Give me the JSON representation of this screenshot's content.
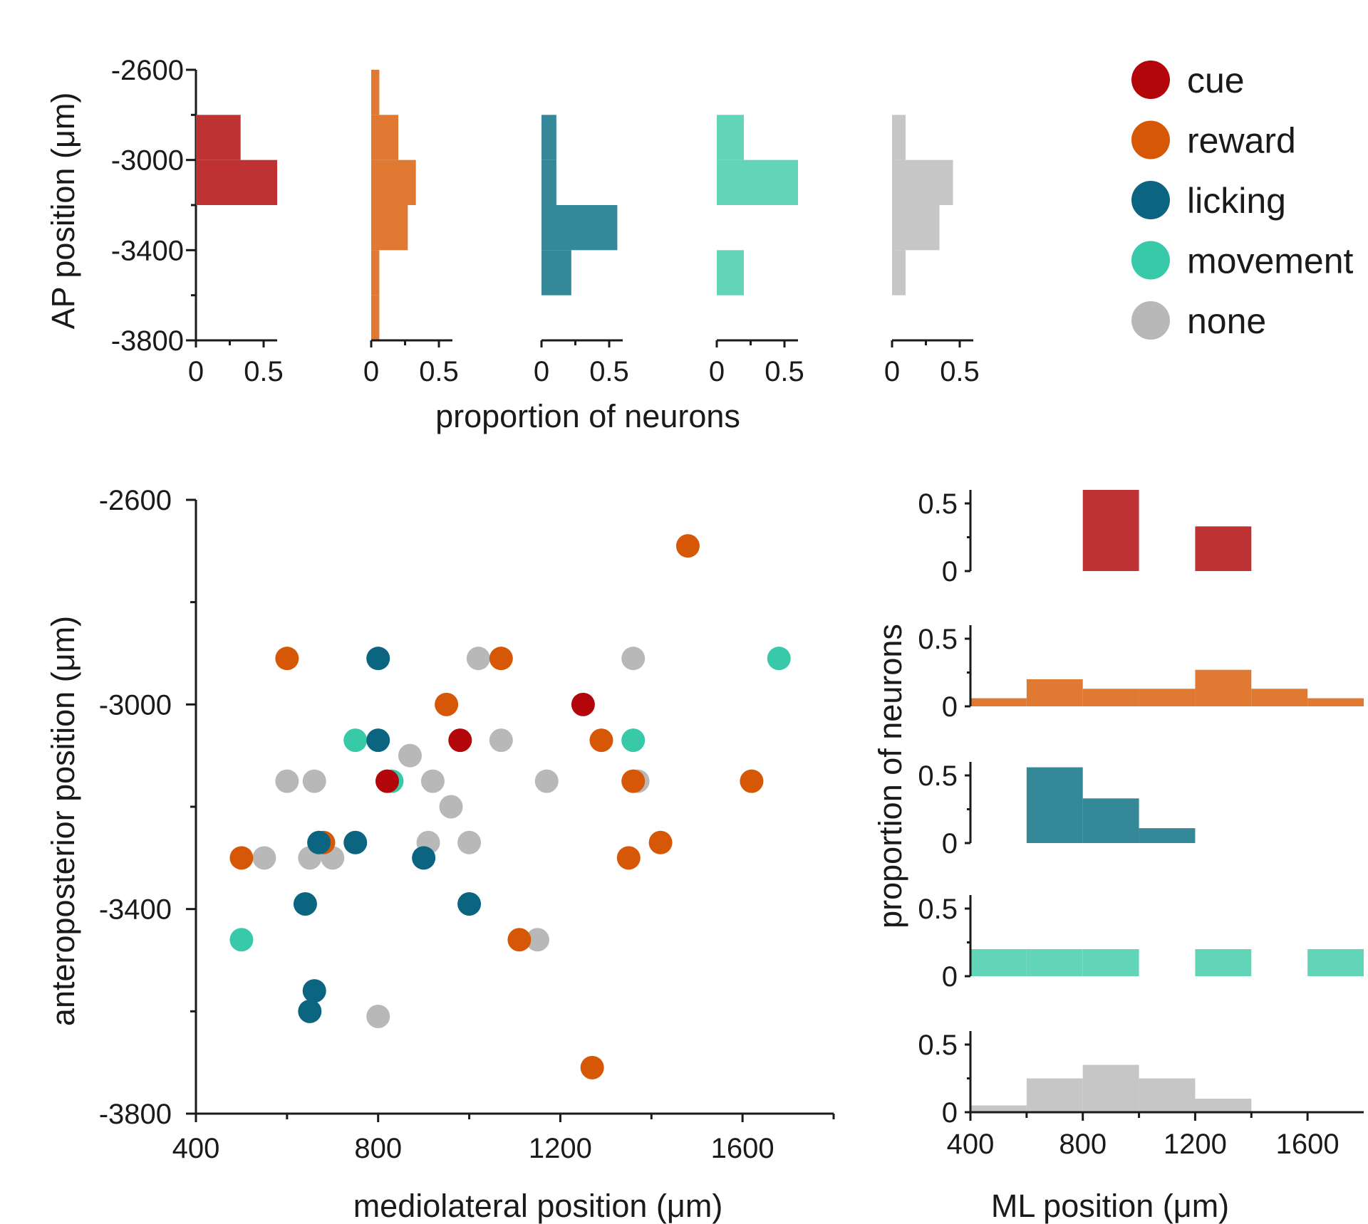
{
  "colors": {
    "cue": "#b3060b",
    "reward": "#d65807",
    "licking": "#0c6580",
    "movement": "#37c9a8",
    "none": "#b8b8b8",
    "hist_cue": "#bf3234",
    "hist_reward": "#e07a33",
    "hist_licking": "#348898",
    "hist_movement": "#62d5b9",
    "hist_none": "#c6c6c6",
    "axis": "#1a1a1a"
  },
  "legend": {
    "items": [
      {
        "key": "cue",
        "label": "cue"
      },
      {
        "key": "reward",
        "label": "reward"
      },
      {
        "key": "licking",
        "label": "licking"
      },
      {
        "key": "movement",
        "label": "movement"
      },
      {
        "key": "none",
        "label": "none"
      }
    ]
  },
  "chart_data": [
    {
      "id": "ap_histograms",
      "type": "bar",
      "orientation": "horizontal",
      "ylabel": "AP position (μm)",
      "xlabel": "proportion of neurons",
      "ylim": [
        -3800,
        -2600
      ],
      "y_ticks": [
        -2600,
        -3000,
        -3400,
        -3800
      ],
      "y_minor_ticks": [
        -2800,
        -3200,
        -3600
      ],
      "xlim": [
        0,
        0.6
      ],
      "x_ticks": [
        0,
        0.5
      ],
      "x_tick_labels": [
        "0",
        "0.5"
      ],
      "x_minor_ticks": [
        0.25
      ],
      "bin_edges": [
        -3800,
        -3600,
        -3400,
        -3200,
        -3000,
        -2800,
        -2600
      ],
      "series": [
        {
          "name": "cue",
          "values": [
            0,
            0,
            0,
            0.6,
            0.33,
            0
          ]
        },
        {
          "name": "reward",
          "values": [
            0.06,
            0.06,
            0.27,
            0.33,
            0.2,
            0.06
          ]
        },
        {
          "name": "licking",
          "values": [
            0,
            0.22,
            0.56,
            0.11,
            0.11,
            0
          ]
        },
        {
          "name": "movement",
          "values": [
            0,
            0.2,
            0,
            0.6,
            0.2,
            0
          ]
        },
        {
          "name": "none",
          "values": [
            0,
            0.1,
            0.35,
            0.45,
            0.1,
            0
          ]
        }
      ]
    },
    {
      "id": "position_scatter",
      "type": "scatter",
      "xlabel": "mediolateral position (μm)",
      "ylabel": "anteroposterior position (μm)",
      "xlim": [
        400,
        1800
      ],
      "ylim": [
        -3800,
        -2600
      ],
      "x_ticks": [
        400,
        800,
        1200,
        1600
      ],
      "x_minor_ticks": [
        600,
        1000,
        1400,
        1800
      ],
      "y_ticks": [
        -2600,
        -3000,
        -3400,
        -3800
      ],
      "y_minor_ticks": [
        -2800,
        -3200,
        -3600
      ],
      "series": [
        {
          "name": "none",
          "points": [
            [
              1020,
              -2910
            ],
            [
              1360,
              -2910
            ],
            [
              1070,
              -3070
            ],
            [
              870,
              -3100
            ],
            [
              600,
              -3150
            ],
            [
              660,
              -3150
            ],
            [
              920,
              -3150
            ],
            [
              1170,
              -3150
            ],
            [
              1370,
              -3150
            ],
            [
              960,
              -3200
            ],
            [
              550,
              -3300
            ],
            [
              650,
              -3300
            ],
            [
              700,
              -3300
            ],
            [
              910,
              -3270
            ],
            [
              1000,
              -3270
            ],
            [
              1150,
              -3460
            ],
            [
              800,
              -3610
            ]
          ]
        },
        {
          "name": "reward",
          "points": [
            [
              1480,
              -2690
            ],
            [
              600,
              -2910
            ],
            [
              1070,
              -2910
            ],
            [
              950,
              -3000
            ],
            [
              1290,
              -3070
            ],
            [
              1360,
              -3150
            ],
            [
              1620,
              -3150
            ],
            [
              500,
              -3300
            ],
            [
              680,
              -3270
            ],
            [
              1350,
              -3300
            ],
            [
              1420,
              -3270
            ],
            [
              1110,
              -3460
            ],
            [
              1270,
              -3710
            ]
          ]
        },
        {
          "name": "movement",
          "points": [
            [
              1680,
              -2910
            ],
            [
              750,
              -3070
            ],
            [
              1360,
              -3070
            ],
            [
              830,
              -3150
            ],
            [
              500,
              -3460
            ]
          ]
        },
        {
          "name": "licking",
          "points": [
            [
              800,
              -2910
            ],
            [
              800,
              -3070
            ],
            [
              670,
              -3270
            ],
            [
              750,
              -3270
            ],
            [
              900,
              -3300
            ],
            [
              640,
              -3390
            ],
            [
              1000,
              -3390
            ],
            [
              660,
              -3560
            ],
            [
              650,
              -3600
            ]
          ]
        },
        {
          "name": "cue",
          "points": [
            [
              1250,
              -3000
            ],
            [
              980,
              -3070
            ],
            [
              820,
              -3150
            ]
          ]
        }
      ]
    },
    {
      "id": "ml_histograms",
      "type": "bar",
      "xlabel": "ML position (μm)",
      "ylabel": "proportion of neurons",
      "xlim": [
        400,
        1800
      ],
      "x_ticks": [
        400,
        800,
        1200,
        1600
      ],
      "x_minor_ticks": [
        600,
        1000,
        1400
      ],
      "ylim": [
        0,
        0.6
      ],
      "y_ticks": [
        0,
        0.5
      ],
      "y_tick_labels": [
        "0",
        "0.5"
      ],
      "y_minor_ticks": [
        0.25
      ],
      "bin_edges": [
        400,
        600,
        800,
        1000,
        1200,
        1400,
        1600,
        1800
      ],
      "series": [
        {
          "name": "cue",
          "values": [
            0,
            0,
            0.6,
            0,
            0.33,
            0,
            0
          ]
        },
        {
          "name": "reward",
          "values": [
            0.06,
            0.2,
            0.13,
            0.13,
            0.27,
            0.13,
            0.06
          ]
        },
        {
          "name": "licking",
          "values": [
            0,
            0.56,
            0.33,
            0.11,
            0,
            0,
            0
          ]
        },
        {
          "name": "movement",
          "values": [
            0.2,
            0.2,
            0.2,
            0,
            0.2,
            0,
            0.2
          ]
        },
        {
          "name": "none",
          "values": [
            0.05,
            0.25,
            0.35,
            0.25,
            0.1,
            0,
            0
          ]
        }
      ]
    }
  ]
}
